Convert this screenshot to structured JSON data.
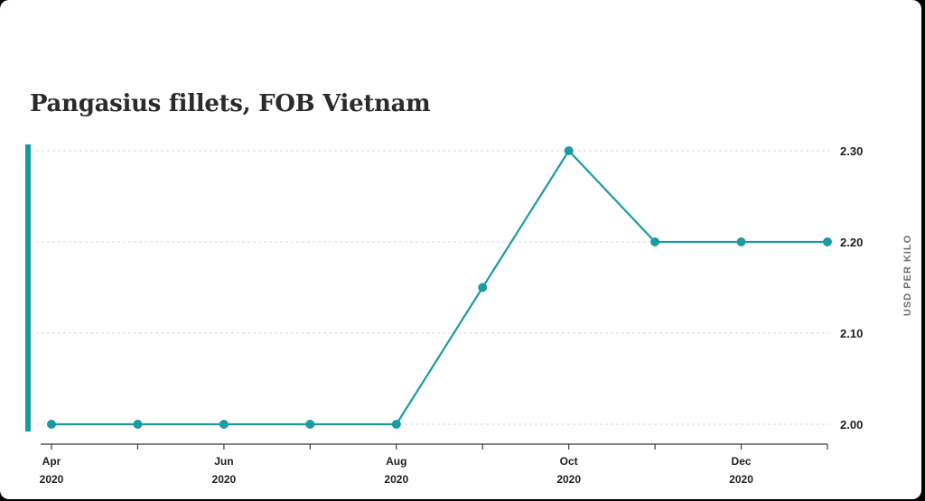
{
  "chart_data": {
    "type": "line",
    "title": "Pangasius fillets, FOB Vietnam",
    "ylabel": "USD PER KILO",
    "xlabel": "",
    "x": [
      "2020-04",
      "2020-05",
      "2020-06",
      "2020-07",
      "2020-08",
      "2020-09",
      "2020-10",
      "2020-11",
      "2020-12",
      "2021-01"
    ],
    "values": [
      2.0,
      2.0,
      2.0,
      2.0,
      2.0,
      2.15,
      2.3,
      2.2,
      2.2,
      2.2
    ],
    "ylim": [
      2.0,
      2.3
    ],
    "y_ticks": [
      "2.00",
      "2.10",
      "2.20",
      "2.30"
    ],
    "x_tick_labels": [
      {
        "month": "Apr",
        "year": "2020"
      },
      {
        "month": "Jun",
        "year": "2020"
      },
      {
        "month": "Aug",
        "year": "2020"
      },
      {
        "month": "Oct",
        "year": "2020"
      },
      {
        "month": "Dec",
        "year": "2020"
      }
    ],
    "y_axis_side": "right",
    "grid": true,
    "line_color": "#1a9ba3"
  }
}
